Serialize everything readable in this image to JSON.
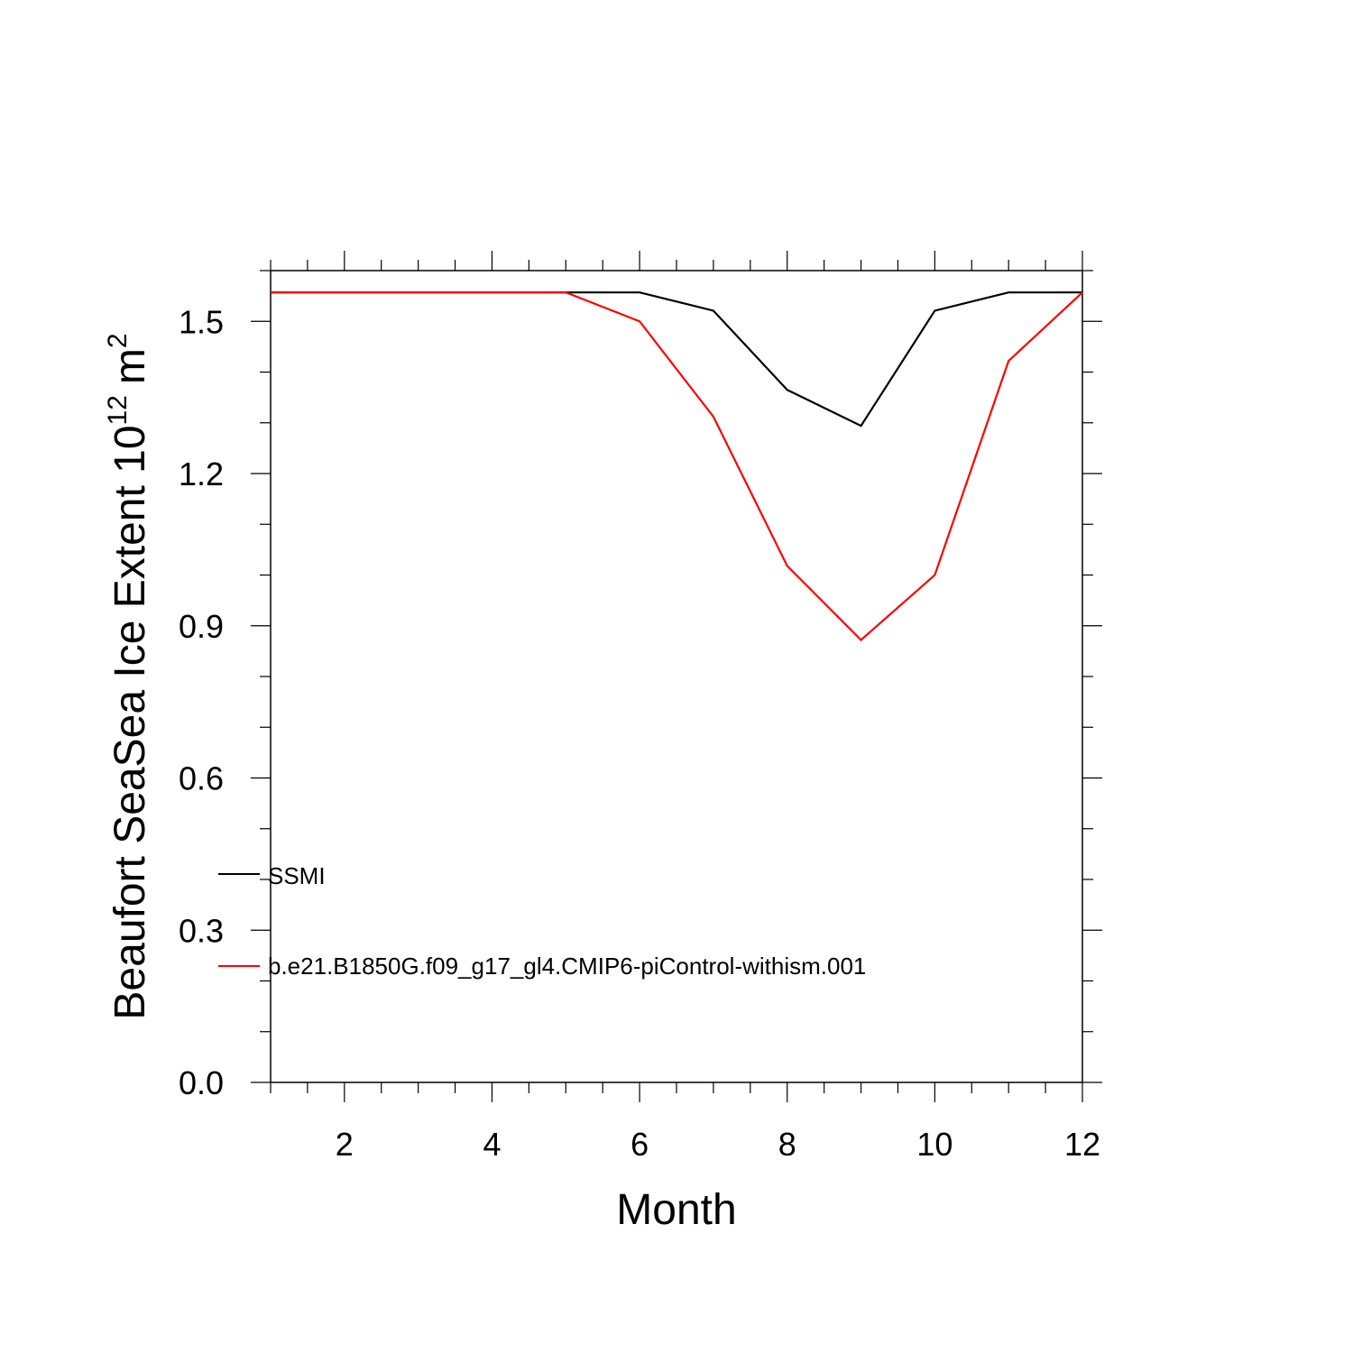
{
  "chart_data": {
    "type": "line",
    "xlabel": "Month",
    "ylabel": "Beaufort SeaSea Ice Extent 10",
    "ylabel_exponent": "12",
    "ylabel_unit": "m",
    "ylabel_unit_exponent": "2",
    "xlim": [
      1,
      12
    ],
    "ylim": [
      0.0,
      1.6
    ],
    "x_ticks": [
      2,
      4,
      6,
      8,
      10,
      12
    ],
    "x_tick_labels": [
      "2",
      "4",
      "6",
      "8",
      "10",
      "12"
    ],
    "y_ticks": [
      0.0,
      0.3,
      0.6,
      0.9,
      1.2,
      1.5
    ],
    "y_tick_labels": [
      "0.0",
      "0.3",
      "0.6",
      "0.9",
      "1.2",
      "1.5"
    ],
    "grid": false,
    "legend_position": "bottom-left",
    "x": [
      1,
      2,
      3,
      4,
      5,
      6,
      7,
      8,
      9,
      10,
      11,
      12
    ],
    "series": [
      {
        "name": "SSMI",
        "color": "#000000",
        "values": [
          1.557,
          1.557,
          1.557,
          1.557,
          1.557,
          1.557,
          1.521,
          1.365,
          1.294,
          1.521,
          1.557,
          1.557
        ]
      },
      {
        "name": "b.e21.B1850G.f09_g17_gl4.CMIP6-piControl-withism.001",
        "color": "#ff0000",
        "values": [
          1.557,
          1.557,
          1.557,
          1.557,
          1.557,
          1.5,
          1.312,
          1.018,
          0.872,
          1.0,
          1.422,
          1.557
        ]
      }
    ]
  }
}
